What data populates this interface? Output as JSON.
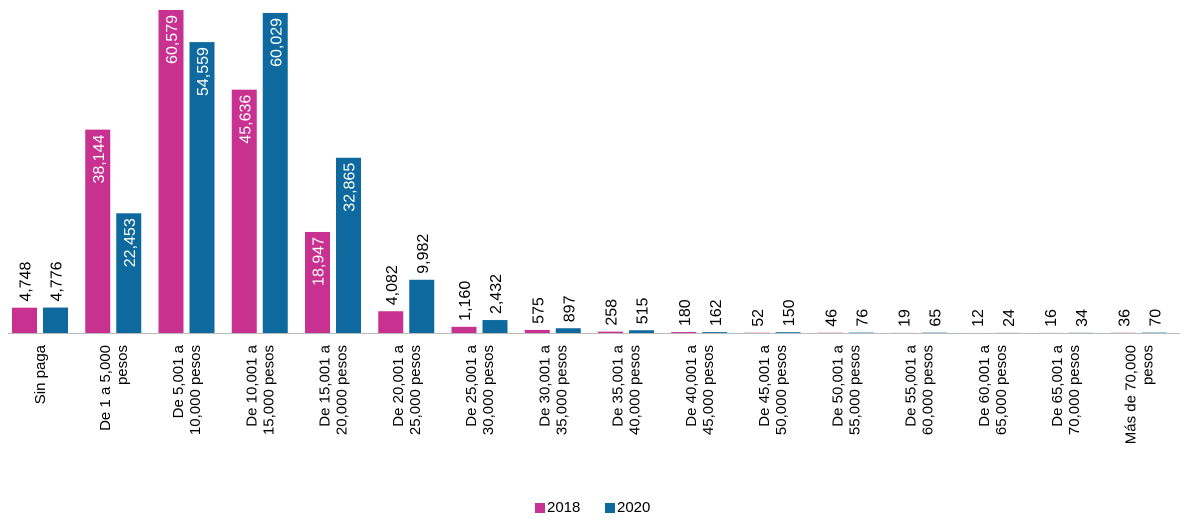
{
  "chart_data": {
    "type": "bar",
    "categories": [
      "Sin paga",
      "De 1 a 5,000 pesos",
      "De 5,001 a 10,000 pesos",
      "De 10,001 a 15,000 pesos",
      "De 15,001 a 20,000 pesos",
      "De 20,001 a 25,000 pesos",
      "De 25,001 a 30,000 pesos",
      "De 30,001 a 35,000 pesos",
      "De 35,001 a 40,000 pesos",
      "De 40,001 a 45,000 pesos",
      "De 45,001 a 50,000 pesos",
      "De 50,001 a 55,000 pesos",
      "De 55,001 a 60,000 pesos",
      "De 60,001 a 65,000 pesos",
      "De 65,001 a 70,000 pesos",
      "Más de 70,000 pesos"
    ],
    "series": [
      {
        "name": "2018",
        "color": "#c8318f",
        "values": [
          4748,
          38144,
          60579,
          45636,
          18947,
          4082,
          1160,
          575,
          258,
          180,
          52,
          46,
          19,
          12,
          16,
          36
        ],
        "value_labels": [
          "4,748",
          "38,144",
          "60,579",
          "45,636",
          "18,947",
          "4,082",
          "1,160",
          "575",
          "258",
          "180",
          "52",
          "46",
          "19",
          "12",
          "16",
          "36"
        ]
      },
      {
        "name": "2020",
        "color": "#0e6a9e",
        "values": [
          4776,
          22453,
          54559,
          60029,
          32865,
          9982,
          2432,
          897,
          515,
          162,
          150,
          76,
          65,
          24,
          34,
          70
        ],
        "value_labels": [
          "4,776",
          "22,453",
          "54,559",
          "60,029",
          "32,865",
          "9,982",
          "2,432",
          "897",
          "515",
          "162",
          "150",
          "76",
          "65",
          "24",
          "34",
          "70"
        ]
      }
    ],
    "legend": "bottom"
  }
}
